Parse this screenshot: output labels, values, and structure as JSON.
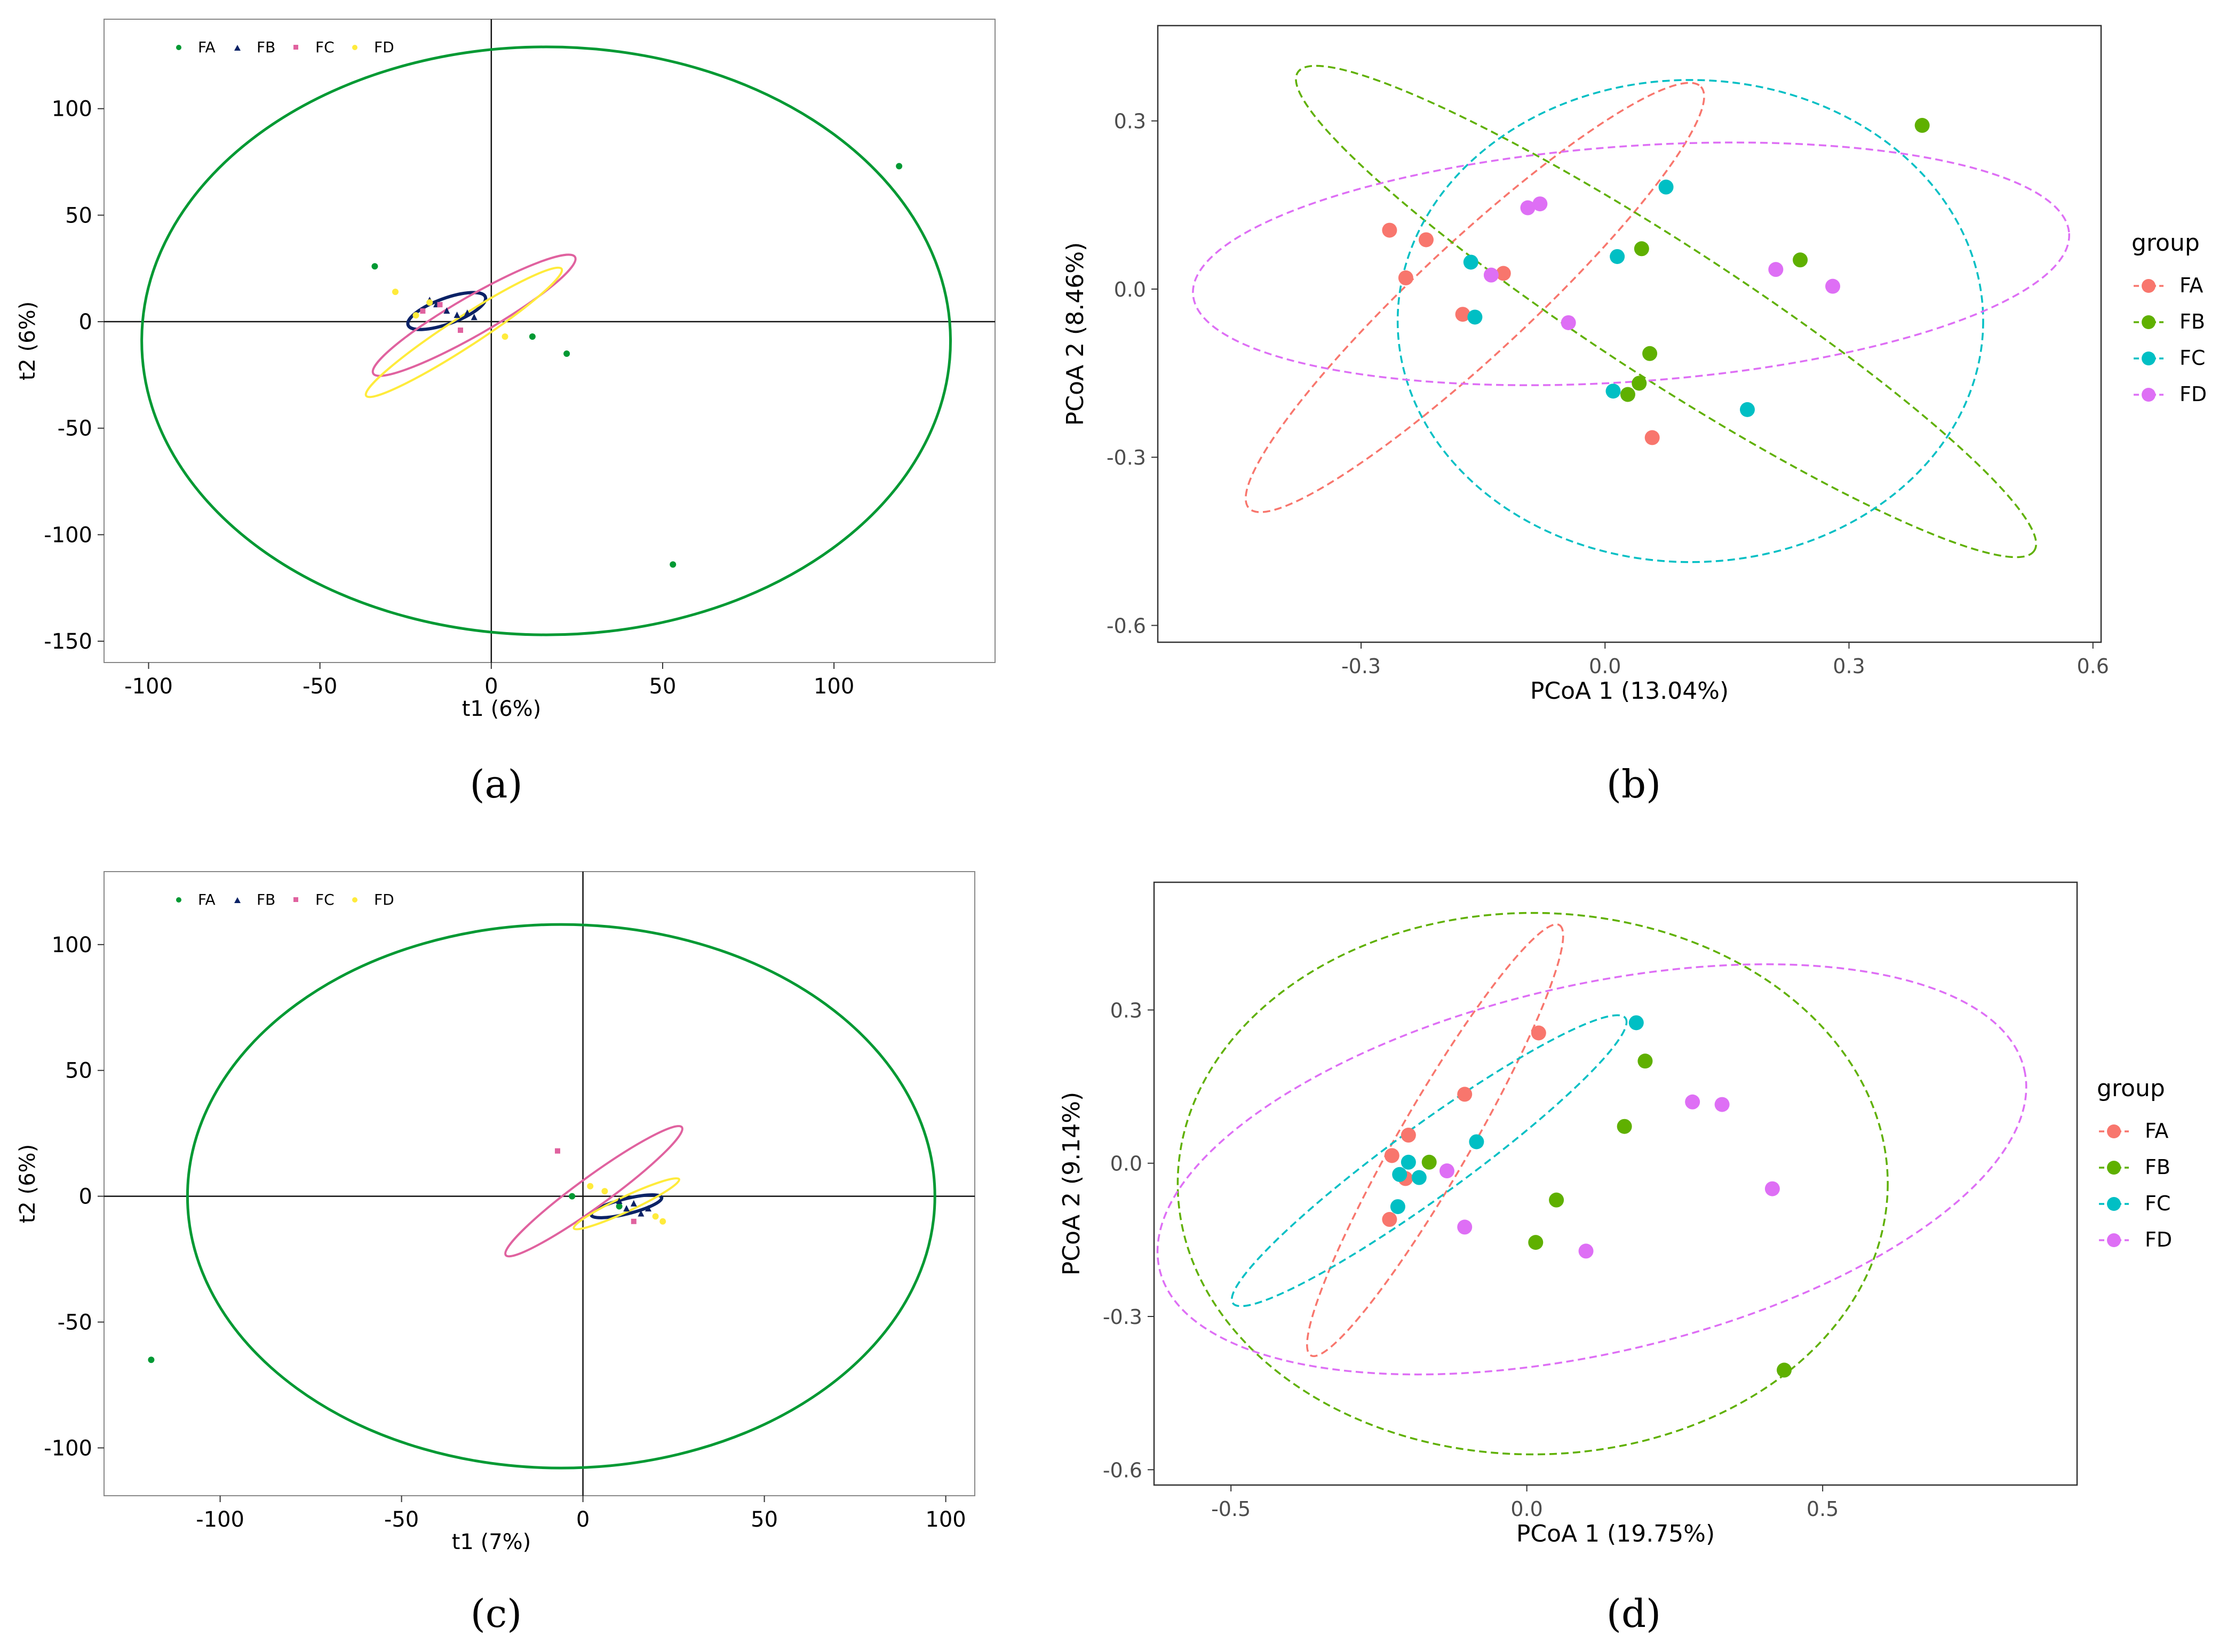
{
  "colors": {
    "simca": {
      "FA": "#009933",
      "FB": "#0b2266",
      "FC": "#e0629f",
      "FD": "#ffeb3b"
    },
    "gg": {
      "FA": "#f8766d",
      "FB": "#5fb000",
      "FC": "#00bfc4",
      "FD": "#de6ff5"
    }
  },
  "chart_data": [
    {
      "id": "a",
      "type": "scatter",
      "style": "simca",
      "caption": "(a)",
      "xlabel": "t1 (6%)",
      "ylabel": "t2 (6%)",
      "xlim": [
        -113,
        147
      ],
      "ylim": [
        -160,
        142
      ],
      "xticks": [
        -100,
        -50,
        0,
        50,
        100
      ],
      "yticks": [
        -150,
        -100,
        -50,
        0,
        50,
        100
      ],
      "legend": {
        "placement": "top-left",
        "entries": [
          "FA",
          "FB",
          "FC",
          "FD"
        ]
      },
      "series": [
        {
          "name": "FA",
          "points": [
            [
              119,
              73
            ],
            [
              53,
              -114
            ],
            [
              12,
              -7
            ],
            [
              22,
              -15
            ],
            [
              -34,
              26
            ]
          ]
        },
        {
          "name": "FB",
          "points": [
            [
              -16,
              8
            ],
            [
              -13,
              5
            ],
            [
              -10,
              3
            ],
            [
              -7,
              4
            ],
            [
              -5,
              2
            ],
            [
              -18,
              10
            ]
          ]
        },
        {
          "name": "FC",
          "points": [
            [
              -9,
              -4
            ],
            [
              -20,
              5
            ],
            [
              -15,
              8
            ]
          ]
        },
        {
          "name": "FD",
          "points": [
            [
              -22,
              3
            ],
            [
              -18,
              9
            ],
            [
              -28,
              14
            ],
            [
              4,
              -7
            ]
          ]
        }
      ],
      "ellipses": [
        {
          "group": "FA",
          "cx": 16,
          "cy": -9,
          "rx": 118,
          "ry": 138,
          "angle": 0
        },
        {
          "group": "FB",
          "cx": -13,
          "cy": 5,
          "rx": 12,
          "ry": 6,
          "angle": 20
        },
        {
          "group": "FC",
          "cx": -5,
          "cy": 3,
          "rx": 34,
          "ry": 9,
          "angle": 30
        },
        {
          "group": "FD",
          "cx": -8,
          "cy": -5,
          "rx": 34,
          "ry": 7,
          "angle": 33
        }
      ]
    },
    {
      "id": "b",
      "type": "scatter",
      "style": "ggplot",
      "caption": "(b)",
      "xlabel": "PCoA 1 (13.04%)",
      "ylabel": "PCoA 2 (8.46%)",
      "xlim": [
        -0.55,
        0.61
      ],
      "ylim": [
        -0.63,
        0.47
      ],
      "xticks": [
        -0.3,
        0.0,
        0.3,
        0.6
      ],
      "yticks": [
        -0.6,
        -0.3,
        0.0,
        0.3
      ],
      "legend": {
        "title": "group",
        "placement": "right",
        "entries": [
          "FA",
          "FB",
          "FC",
          "FD"
        ]
      },
      "series": [
        {
          "name": "FA",
          "points": [
            [
              -0.265,
              0.105
            ],
            [
              -0.22,
              0.088
            ],
            [
              -0.245,
              0.02
            ],
            [
              -0.175,
              -0.045
            ],
            [
              -0.125,
              0.028
            ],
            [
              0.058,
              -0.265
            ]
          ]
        },
        {
          "name": "FB",
          "points": [
            [
              0.39,
              0.292
            ],
            [
              0.24,
              0.052
            ],
            [
              0.045,
              0.072
            ],
            [
              0.055,
              -0.115
            ],
            [
              0.042,
              -0.168
            ],
            [
              0.028,
              -0.188
            ]
          ]
        },
        {
          "name": "FC",
          "points": [
            [
              0.075,
              0.182
            ],
            [
              -0.165,
              0.048
            ],
            [
              0.015,
              0.058
            ],
            [
              -0.16,
              -0.05
            ],
            [
              0.01,
              -0.182
            ],
            [
              0.175,
              -0.215
            ]
          ]
        },
        {
          "name": "FD",
          "points": [
            [
              -0.08,
              0.152
            ],
            [
              -0.095,
              0.145
            ],
            [
              -0.14,
              0.025
            ],
            [
              -0.045,
              -0.06
            ],
            [
              0.21,
              0.035
            ],
            [
              0.28,
              0.005
            ]
          ]
        }
      ],
      "ellipses": [
        {
          "group": "FA",
          "cx": -0.16,
          "cy": -0.015,
          "rx": 0.38,
          "ry": 0.1,
          "angle": 43
        },
        {
          "group": "FB",
          "cx": 0.075,
          "cy": -0.04,
          "rx": 0.54,
          "ry": 0.12,
          "angle": -33
        },
        {
          "group": "FC",
          "cx": 0.105,
          "cy": -0.057,
          "rx": 0.36,
          "ry": 0.43,
          "angle": 0
        },
        {
          "group": "FD",
          "cx": 0.032,
          "cy": 0.045,
          "rx": 0.54,
          "ry": 0.21,
          "angle": 4
        }
      ]
    },
    {
      "id": "c",
      "type": "scatter",
      "style": "simca",
      "caption": "(c)",
      "xlabel": "t1 (7%)",
      "ylabel": "t2 (6%)",
      "xlim": [
        -132,
        108
      ],
      "ylim": [
        -119,
        129
      ],
      "xticks": [
        -100,
        -50,
        0,
        50,
        100
      ],
      "yticks": [
        -100,
        -50,
        0,
        50,
        100
      ],
      "legend": {
        "placement": "top-left",
        "entries": [
          "FA",
          "FB",
          "FC",
          "FD"
        ]
      },
      "series": [
        {
          "name": "FA",
          "points": [
            [
              -119,
              -65
            ],
            [
              -3,
              0
            ],
            [
              10,
              -4
            ]
          ]
        },
        {
          "name": "FB",
          "points": [
            [
              10,
              -2
            ],
            [
              12,
              -5
            ],
            [
              14,
              -3
            ],
            [
              16,
              -7
            ],
            [
              18,
              -5
            ]
          ]
        },
        {
          "name": "FC",
          "points": [
            [
              -7,
              18
            ],
            [
              14,
              -10
            ]
          ]
        },
        {
          "name": "FD",
          "points": [
            [
              2,
              4
            ],
            [
              6,
              2
            ],
            [
              20,
              -8
            ],
            [
              22,
              -10
            ]
          ]
        }
      ],
      "ellipses": [
        {
          "group": "FA",
          "cx": -6,
          "cy": 0,
          "rx": 103,
          "ry": 108,
          "angle": 0
        },
        {
          "group": "FB",
          "cx": 12,
          "cy": -4,
          "rx": 10,
          "ry": 3,
          "angle": 14
        },
        {
          "group": "FC",
          "cx": 3,
          "cy": 2,
          "rx": 30,
          "ry": 6,
          "angle": 36
        },
        {
          "group": "FD",
          "cx": 12,
          "cy": -3,
          "rx": 16,
          "ry": 3,
          "angle": 25
        }
      ]
    },
    {
      "id": "d",
      "type": "scatter",
      "style": "ggplot",
      "caption": "(d)",
      "xlabel": "PCoA 1 (19.75%)",
      "ylabel": "PCoA 2 (9.14%)",
      "xlim": [
        -0.63,
        0.93
      ],
      "ylim": [
        -0.63,
        0.55
      ],
      "xticks": [
        -0.5,
        0.0,
        0.5
      ],
      "yticks": [
        -0.6,
        -0.3,
        0.0,
        0.3
      ],
      "legend": {
        "title": "group",
        "placement": "right",
        "entries": [
          "FA",
          "FB",
          "FC",
          "FD"
        ]
      },
      "series": [
        {
          "name": "FA",
          "points": [
            [
              0.02,
              0.255
            ],
            [
              -0.105,
              0.135
            ],
            [
              -0.2,
              0.055
            ],
            [
              -0.228,
              0.015
            ],
            [
              -0.205,
              -0.03
            ],
            [
              -0.232,
              -0.11
            ]
          ]
        },
        {
          "name": "FB",
          "points": [
            [
              0.2,
              0.2
            ],
            [
              0.165,
              0.072
            ],
            [
              -0.165,
              0.002
            ],
            [
              0.05,
              -0.072
            ],
            [
              0.015,
              -0.155
            ],
            [
              0.435,
              -0.405
            ]
          ]
        },
        {
          "name": "FC",
          "points": [
            [
              0.185,
              0.275
            ],
            [
              -0.085,
              0.042
            ],
            [
              -0.2,
              0.002
            ],
            [
              -0.215,
              -0.022
            ],
            [
              -0.182,
              -0.028
            ],
            [
              -0.218,
              -0.085
            ]
          ]
        },
        {
          "name": "FD",
          "points": [
            [
              0.28,
              0.12
            ],
            [
              0.33,
              0.115
            ],
            [
              0.415,
              -0.05
            ],
            [
              -0.135,
              -0.015
            ],
            [
              -0.105,
              -0.125
            ],
            [
              0.1,
              -0.172
            ]
          ]
        }
      ],
      "ellipses": [
        {
          "group": "FA",
          "cx": -0.155,
          "cy": 0.045,
          "rx": 0.42,
          "ry": 0.07,
          "angle": 60
        },
        {
          "group": "FB",
          "cx": 0.01,
          "cy": -0.04,
          "rx": 0.6,
          "ry": 0.53,
          "angle": 0
        },
        {
          "group": "FC",
          "cx": -0.165,
          "cy": 0.005,
          "rx": 0.41,
          "ry": 0.07,
          "angle": 36
        },
        {
          "group": "FD",
          "cx": 0.11,
          "cy": -0.012,
          "rx": 0.75,
          "ry": 0.36,
          "angle": 13
        }
      ]
    }
  ]
}
